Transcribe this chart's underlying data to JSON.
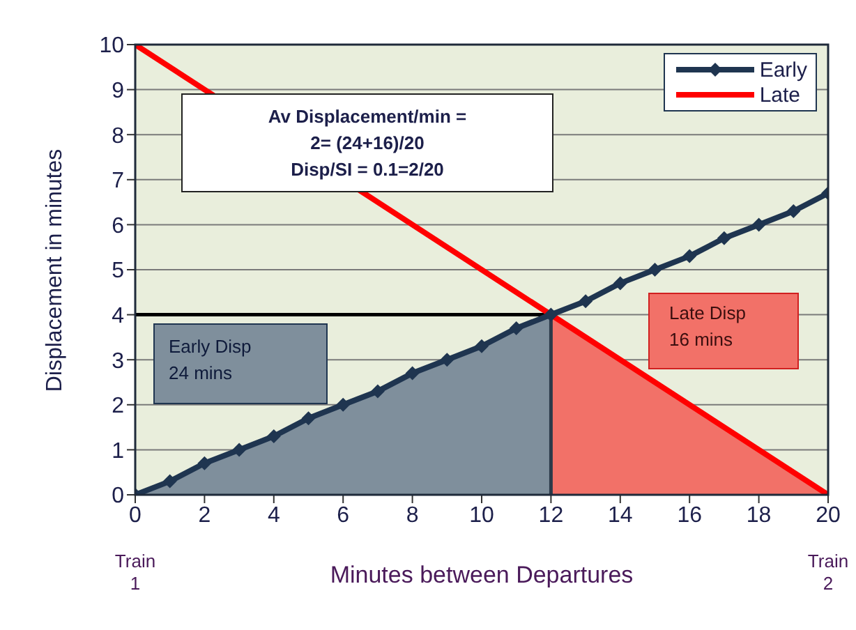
{
  "chart_data": {
    "type": "line",
    "xlabel": "Minutes between Departures",
    "ylabel": "Displacement in minutes",
    "xlim": [
      0,
      20
    ],
    "xticks": [
      0,
      2,
      4,
      6,
      8,
      10,
      12,
      14,
      16,
      18,
      20
    ],
    "ylim": [
      0,
      10
    ],
    "yticks": [
      0,
      1,
      2,
      3,
      4,
      5,
      6,
      7,
      8,
      9,
      10
    ],
    "grid": "y",
    "legend": "top right",
    "series": [
      {
        "type": "area",
        "color": "#7f8f9c",
        "x": [
          0,
          12
        ],
        "values": [
          0,
          4
        ]
      },
      {
        "type": "area",
        "color": "#f27168",
        "x": [
          12,
          20
        ],
        "values": [
          4,
          0
        ]
      },
      {
        "color": "#000000",
        "x": [
          0,
          12
        ],
        "values": [
          4,
          4
        ]
      },
      {
        "color": "#2b3a4a",
        "x": [
          12,
          12
        ],
        "values": [
          0,
          4
        ]
      },
      {
        "name": "Early",
        "color": "#1f3550",
        "marker": "diamond",
        "x": [
          0,
          1,
          2,
          3,
          4,
          5,
          6,
          7,
          8,
          9,
          10,
          11,
          12,
          13,
          14,
          15,
          16,
          17,
          18,
          19,
          20
        ],
        "values": [
          0,
          0.3,
          0.7,
          1,
          1.3,
          1.7,
          2,
          2.3,
          2.7,
          3,
          3.3,
          3.7,
          4,
          4.3,
          4.7,
          5,
          5.3,
          5.7,
          6,
          6.3,
          6.7
        ]
      },
      {
        "name": "Late",
        "color": "#ff0000",
        "x": [
          0,
          20
        ],
        "values": [
          10,
          0
        ]
      }
    ],
    "annotations": [
      "Av Displacement/min =\n2= (24+16)/20\nDisp/SI = 0.1=2/20",
      "Early Disp\n24 mins",
      "Late Disp\n16 mins",
      "Train\n1",
      "Train\n2"
    ]
  }
}
